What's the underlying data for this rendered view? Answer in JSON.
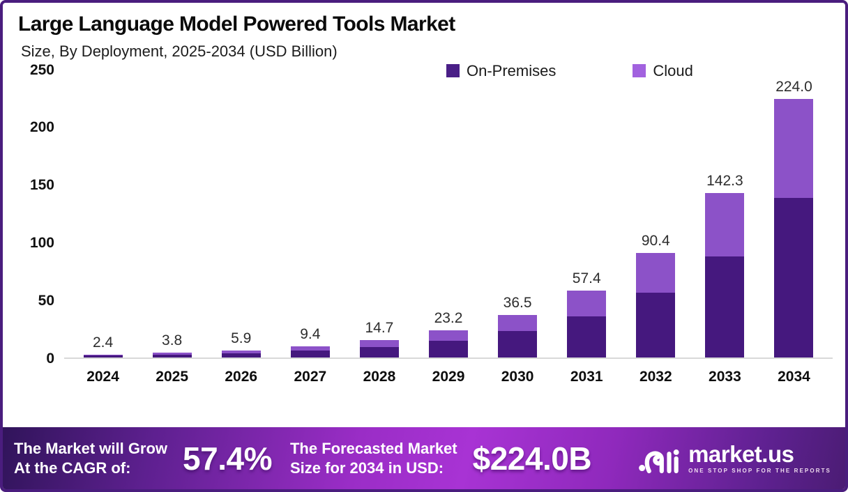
{
  "header": {
    "title": "Large Language Model Powered Tools Market",
    "subtitle": "Size, By Deployment, 2025-2034 (USD Billion)"
  },
  "legend": {
    "items": [
      {
        "label": "On-Premises",
        "color": "#4A1F87"
      },
      {
        "label": "Cloud",
        "color": "#A262DF"
      }
    ]
  },
  "chart_data": {
    "type": "bar",
    "stacked": true,
    "title": "Large Language Model Powered Tools Market",
    "subtitle": "Size, By Deployment, 2025-2034 (USD Billion)",
    "categories": [
      "2024",
      "2025",
      "2026",
      "2027",
      "2028",
      "2029",
      "2030",
      "2031",
      "2032",
      "2033",
      "2034"
    ],
    "totals": [
      2.4,
      3.8,
      5.9,
      9.4,
      14.7,
      23.2,
      36.5,
      57.4,
      90.4,
      142.3,
      224.0
    ],
    "series": [
      {
        "name": "On-Premises",
        "color": "#45187E",
        "values": [
          1.5,
          2.3,
          3.6,
          5.8,
          9.0,
          14.3,
          22.4,
          35.3,
          55.6,
          87.5,
          137.8
        ]
      },
      {
        "name": "Cloud",
        "color": "#8C52C8",
        "values": [
          0.9,
          1.5,
          2.3,
          3.6,
          5.7,
          8.9,
          14.1,
          22.1,
          34.8,
          54.8,
          86.2
        ]
      }
    ],
    "ylabel": "",
    "xlabel": "",
    "ylim": [
      0,
      250
    ],
    "yticks": [
      0,
      50,
      100,
      150,
      200,
      250
    ],
    "grid": false,
    "legend_position": "top-right",
    "value_labels": "totals shown above each bar"
  },
  "footer": {
    "cagr_label_line1": "The Market will Grow",
    "cagr_label_line2": "At the CAGR of:",
    "cagr_value": "57.4%",
    "forecast_label_line1": "The Forecasted Market",
    "forecast_label_line2": "Size for 2034 in USD:",
    "forecast_value": "$224.0B",
    "brand_name": "market.us",
    "brand_tagline": "ONE STOP SHOP FOR THE REPORTS"
  },
  "colors": {
    "border": "#4A1D7E",
    "on_premises_bar": "#45187E",
    "cloud_bar": "#8C52C8",
    "axis_line": "#D9D9D9"
  }
}
